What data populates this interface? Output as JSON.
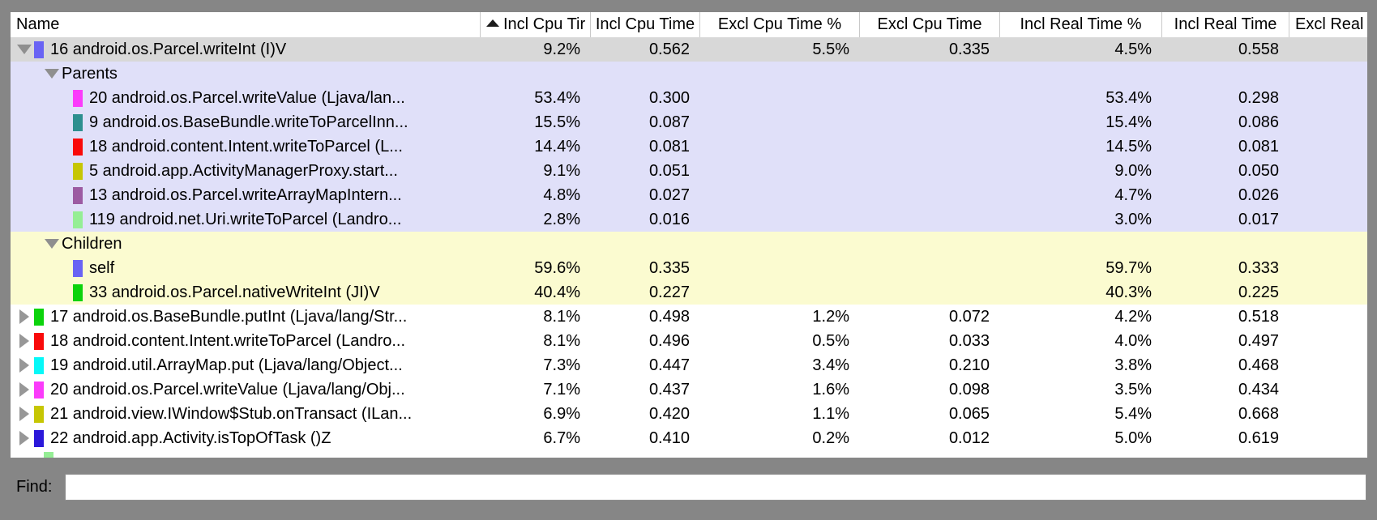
{
  "window": {
    "background_color": "#868686",
    "selected_row_color": "#d8d8d8",
    "parents_section_color": "#e0e0f9",
    "children_section_color": "#fbfbd0"
  },
  "table": {
    "columns": [
      {
        "id": "name",
        "label": "Name",
        "align_header": "left",
        "sort": null
      },
      {
        "id": "incl_cpu_pct",
        "label": "Incl Cpu Tir",
        "align_header": "left",
        "sort": "asc"
      },
      {
        "id": "incl_cpu",
        "label": "Incl Cpu Time",
        "align_header": "center",
        "sort": null
      },
      {
        "id": "excl_cpu_pct",
        "label": "Excl Cpu Time %",
        "align_header": "center",
        "sort": null
      },
      {
        "id": "excl_cpu",
        "label": "Excl Cpu Time",
        "align_header": "center",
        "sort": null
      },
      {
        "id": "incl_real_pct",
        "label": "Incl Real Time %",
        "align_header": "center",
        "sort": null
      },
      {
        "id": "incl_real",
        "label": "Incl Real Time",
        "align_header": "center",
        "sort": null
      },
      {
        "id": "excl_real",
        "label": "Excl Real",
        "align_header": "left",
        "sort": null
      }
    ],
    "rows": [
      {
        "name": "16 android.os.Parcel.writeInt (I)V",
        "indent": 0,
        "expander": "down",
        "swatch": "#6963f4",
        "bg": "selected",
        "values": [
          "9.2%",
          "0.562",
          "5.5%",
          "0.335",
          "4.5%",
          "0.558",
          ""
        ]
      },
      {
        "name": "Parents",
        "indent": 1,
        "expander": "down",
        "swatch": null,
        "bg": "parents",
        "values": [
          "",
          "",
          "",
          "",
          "",
          "",
          ""
        ]
      },
      {
        "name": "20 android.os.Parcel.writeValue (Ljava/lan...",
        "indent": 2,
        "expander": null,
        "swatch": "#fb3bfb",
        "bg": "parents",
        "values": [
          "53.4%",
          "0.300",
          "",
          "",
          "53.4%",
          "0.298",
          ""
        ]
      },
      {
        "name": "9 android.os.BaseBundle.writeToParcelInn...",
        "indent": 2,
        "expander": null,
        "swatch": "#2d8f8f",
        "bg": "parents",
        "values": [
          "15.5%",
          "0.087",
          "",
          "",
          "15.4%",
          "0.086",
          ""
        ]
      },
      {
        "name": "18 android.content.Intent.writeToParcel (L...",
        "indent": 2,
        "expander": null,
        "swatch": "#f90a0a",
        "bg": "parents",
        "values": [
          "14.4%",
          "0.081",
          "",
          "",
          "14.5%",
          "0.081",
          ""
        ]
      },
      {
        "name": "5 android.app.ActivityManagerProxy.start...",
        "indent": 2,
        "expander": null,
        "swatch": "#c6c603",
        "bg": "parents",
        "values": [
          "9.1%",
          "0.051",
          "",
          "",
          "9.0%",
          "0.050",
          ""
        ]
      },
      {
        "name": "13 android.os.Parcel.writeArrayMapIntern...",
        "indent": 2,
        "expander": null,
        "swatch": "#9c5ba2",
        "bg": "parents",
        "values": [
          "4.8%",
          "0.027",
          "",
          "",
          "4.7%",
          "0.026",
          ""
        ]
      },
      {
        "name": "119 android.net.Uri.writeToParcel (Landro...",
        "indent": 2,
        "expander": null,
        "swatch": "#95ee95",
        "bg": "parents",
        "values": [
          "2.8%",
          "0.016",
          "",
          "",
          "3.0%",
          "0.017",
          ""
        ]
      },
      {
        "name": "Children",
        "indent": 1,
        "expander": "down",
        "swatch": null,
        "bg": "children",
        "values": [
          "",
          "",
          "",
          "",
          "",
          "",
          ""
        ]
      },
      {
        "name": "self",
        "indent": 2,
        "expander": null,
        "swatch": "#6963f4",
        "bg": "children",
        "values": [
          "59.6%",
          "0.335",
          "",
          "",
          "59.7%",
          "0.333",
          ""
        ]
      },
      {
        "name": "33 android.os.Parcel.nativeWriteInt (JI)V",
        "indent": 2,
        "expander": null,
        "swatch": "#0cd30c",
        "bg": "children",
        "values": [
          "40.4%",
          "0.227",
          "",
          "",
          "40.3%",
          "0.225",
          ""
        ]
      },
      {
        "name": "17 android.os.BaseBundle.putInt (Ljava/lang/Str...",
        "indent": 0,
        "expander": "right",
        "swatch": "#0cd30c",
        "bg": "white",
        "values": [
          "8.1%",
          "0.498",
          "1.2%",
          "0.072",
          "4.2%",
          "0.518",
          ""
        ]
      },
      {
        "name": "18 android.content.Intent.writeToParcel (Landro...",
        "indent": 0,
        "expander": "right",
        "swatch": "#f90a0a",
        "bg": "white",
        "values": [
          "8.1%",
          "0.496",
          "0.5%",
          "0.033",
          "4.0%",
          "0.497",
          ""
        ]
      },
      {
        "name": "19 android.util.ArrayMap.put (Ljava/lang/Object...",
        "indent": 0,
        "expander": "right",
        "swatch": "#06f8f8",
        "bg": "white",
        "values": [
          "7.3%",
          "0.447",
          "3.4%",
          "0.210",
          "3.8%",
          "0.468",
          ""
        ]
      },
      {
        "name": "20 android.os.Parcel.writeValue (Ljava/lang/Obj...",
        "indent": 0,
        "expander": "right",
        "swatch": "#fb3bfb",
        "bg": "white",
        "values": [
          "7.1%",
          "0.437",
          "1.6%",
          "0.098",
          "3.5%",
          "0.434",
          ""
        ]
      },
      {
        "name": "21 android.view.IWindow$Stub.onTransact (ILan...",
        "indent": 0,
        "expander": "right",
        "swatch": "#c6c603",
        "bg": "white",
        "values": [
          "6.9%",
          "0.420",
          "1.1%",
          "0.065",
          "5.4%",
          "0.668",
          ""
        ]
      },
      {
        "name": "22 android.app.Activity.isTopOfTask ()Z",
        "indent": 0,
        "expander": "right",
        "swatch": "#2b18da",
        "bg": "white",
        "values": [
          "6.7%",
          "0.410",
          "0.2%",
          "0.012",
          "5.0%",
          "0.619",
          ""
        ]
      }
    ],
    "partial_row": {
      "swatch": "#95ee95"
    }
  },
  "find": {
    "label": "Find:",
    "value": "",
    "placeholder": ""
  }
}
